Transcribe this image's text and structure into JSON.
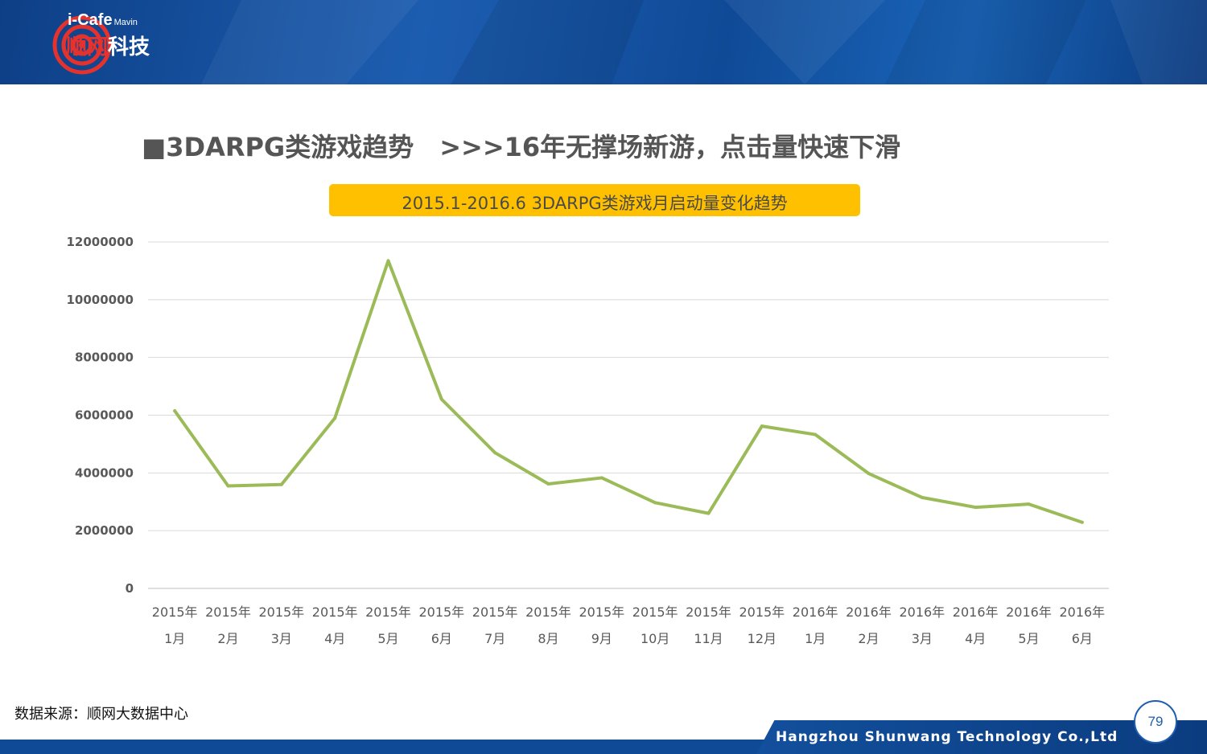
{
  "header": {
    "logo_brand": "i-Cafe",
    "logo_sub": "Mavin",
    "logo_cn_part1": "顺网",
    "logo_cn_part2": "科技",
    "logo_icon": "target-swirl-icon",
    "colors": {
      "header_bg": "#1a5aaa",
      "logo_red": "#e5322d"
    }
  },
  "slide": {
    "title": "■3DARPG类游戏趋势　>>>16年无撑场新游，点击量快速下滑",
    "source": "数据来源：顺网大数据中心",
    "page_number": "79",
    "footer_company": "Hangzhou Shunwang Technology Co.,Ltd"
  },
  "chart_data": {
    "type": "line",
    "title": "2015.1-2016.6 3DARPG类游戏月启动量变化趋势",
    "xlabel": "",
    "ylabel": "",
    "ylim": [
      0,
      12000000
    ],
    "yticks": [
      "0",
      "2000000",
      "4000000",
      "6000000",
      "8000000",
      "10000000",
      "12000000"
    ],
    "grid": true,
    "legend": "none",
    "categories": [
      [
        "2015年",
        "1月"
      ],
      [
        "2015年",
        "2月"
      ],
      [
        "2015年",
        "3月"
      ],
      [
        "2015年",
        "4月"
      ],
      [
        "2015年",
        "5月"
      ],
      [
        "2015年",
        "6月"
      ],
      [
        "2015年",
        "7月"
      ],
      [
        "2015年",
        "8月"
      ],
      [
        "2015年",
        "9月"
      ],
      [
        "2015年",
        "10月"
      ],
      [
        "2015年",
        "11月"
      ],
      [
        "2015年",
        "12月"
      ],
      [
        "2016年",
        "1月"
      ],
      [
        "2016年",
        "2月"
      ],
      [
        "2016年",
        "3月"
      ],
      [
        "2016年",
        "4月"
      ],
      [
        "2016年",
        "5月"
      ],
      [
        "2016年",
        "6月"
      ]
    ],
    "series": [
      {
        "color": "#9bbb59",
        "values": [
          6150000,
          3550000,
          3600000,
          5900000,
          11350000,
          6550000,
          4700000,
          3620000,
          3830000,
          2970000,
          2600000,
          5620000,
          5330000,
          3980000,
          3150000,
          2810000,
          2920000,
          2290000
        ]
      }
    ]
  }
}
